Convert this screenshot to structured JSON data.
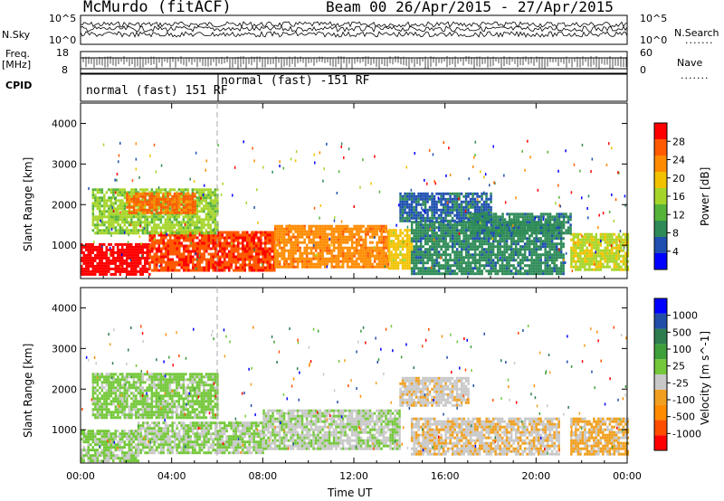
{
  "header": {
    "station": "McMurdo (fitACF)",
    "beam_info": "Beam 00  26/Apr/2015 - 27/Apr/2015"
  },
  "strip_labels": {
    "nsky": "N.Sky",
    "nsky_top": "10^5",
    "nsky_bottom": "10^0",
    "nsearch": "N.Search",
    "nsearch_top": "10^5",
    "nsearch_bottom": "10^0",
    "freq": "Freq.",
    "freq_unit": "[MHz]",
    "freq_top": "18",
    "freq_bottom": "8",
    "nave": "Nave",
    "nave_top": "60",
    "nave_bottom": "0",
    "cpid": "CPID",
    "dots": "......."
  },
  "cpid_segments": [
    {
      "label": "normal (fast) 151 RF"
    },
    {
      "label": "normal (fast) -151 RF"
    }
  ],
  "colors": {
    "power": [
      "#0000ff",
      "#1f4fb0",
      "#2e8b57",
      "#56b33a",
      "#a6d52a",
      "#f2c200",
      "#ff8c00",
      "#ff5a00",
      "#ff0000"
    ],
    "velocity": [
      "#ff0000",
      "#ff4d00",
      "#ff8c00",
      "#f0a020",
      "#c8c8c8",
      "#74c83a",
      "#3ea03a",
      "#2e7d4f",
      "#234ea8",
      "#0000ff"
    ]
  },
  "chart_data": [
    {
      "type": "heatmap",
      "title": "",
      "xlabel": "",
      "ylabel": "Slant Range [km]",
      "xlim": [
        0,
        24
      ],
      "ylim": [
        180,
        4500
      ],
      "x_tick_labels": [
        "00:00",
        "04:00",
        "08:00",
        "12:00",
        "16:00",
        "20:00",
        "00:00"
      ],
      "x_ticks": [
        0,
        4,
        8,
        12,
        16,
        20,
        24
      ],
      "y_tick_labels": [
        "1000",
        "2000",
        "3000",
        "4000"
      ],
      "y_ticks": [
        1000,
        2000,
        3000,
        4000
      ],
      "colorbar": {
        "label": "Power [dB]",
        "ticks": [
          "28",
          "24",
          "20",
          "16",
          "12",
          "8",
          "4"
        ],
        "range": [
          0,
          30
        ]
      },
      "regions": [
        {
          "t0": 0.0,
          "t1": 3.0,
          "r0": 250,
          "r1": 1050,
          "value": 29
        },
        {
          "t0": 3.0,
          "t1": 8.5,
          "r0": 350,
          "r1": 1350,
          "value": 26
        },
        {
          "t0": 8.5,
          "t1": 13.5,
          "r0": 450,
          "r1": 1500,
          "value": 22
        },
        {
          "t0": 13.5,
          "t1": 14.5,
          "r0": 400,
          "r1": 1400,
          "value": 18
        },
        {
          "t0": 14.5,
          "t1": 21.2,
          "r0": 300,
          "r1": 1600,
          "value": 8
        },
        {
          "t0": 21.5,
          "t1": 24.0,
          "r0": 400,
          "r1": 1300,
          "value": 16
        },
        {
          "t0": 0.5,
          "t1": 6.0,
          "r0": 1300,
          "r1": 2400,
          "value": 14
        },
        {
          "t0": 2.0,
          "t1": 5.0,
          "r0": 1800,
          "r1": 2300,
          "value": 24
        },
        {
          "t0": 14.0,
          "t1": 18.0,
          "r0": 1600,
          "r1": 2300,
          "value": 6
        },
        {
          "t0": 17.0,
          "t1": 21.5,
          "r0": 1300,
          "r1": 1800,
          "value": 8
        }
      ]
    },
    {
      "type": "heatmap",
      "title": "",
      "xlabel": "Time UT",
      "ylabel": "Slant Range [km]",
      "xlim": [
        0,
        24
      ],
      "ylim": [
        180,
        4500
      ],
      "x_tick_labels": [
        "00:00",
        "04:00",
        "08:00",
        "12:00",
        "16:00",
        "20:00",
        "00:00"
      ],
      "x_ticks": [
        0,
        4,
        8,
        12,
        16,
        20,
        24
      ],
      "y_tick_labels": [
        "1000",
        "2000",
        "3000",
        "4000"
      ],
      "y_ticks": [
        1000,
        2000,
        3000,
        4000
      ],
      "colorbar": {
        "label": "Velocity [m s^-1]",
        "ticks": [
          "1000",
          "500",
          "100",
          "25",
          "-25",
          "-100",
          "-500",
          "-1000"
        ],
        "range": [
          -1200,
          1200
        ]
      },
      "regions": [
        {
          "t0": 0.0,
          "t1": 2.5,
          "r0": 250,
          "r1": 1000,
          "value": 50
        },
        {
          "t0": 2.5,
          "t1": 8.0,
          "r0": 400,
          "r1": 1200,
          "value": 0
        },
        {
          "t0": 8.0,
          "t1": 14.0,
          "r0": 500,
          "r1": 1500,
          "value": -50
        },
        {
          "t0": 14.5,
          "t1": 21.0,
          "r0": 400,
          "r1": 1300,
          "value": -200
        },
        {
          "t0": 21.5,
          "t1": 24.0,
          "r0": 400,
          "r1": 1300,
          "value": -300
        },
        {
          "t0": 0.5,
          "t1": 6.0,
          "r0": 1300,
          "r1": 2400,
          "value": 80
        },
        {
          "t0": 14.0,
          "t1": 17.0,
          "r0": 1600,
          "r1": 2300,
          "value": -150
        }
      ]
    }
  ]
}
